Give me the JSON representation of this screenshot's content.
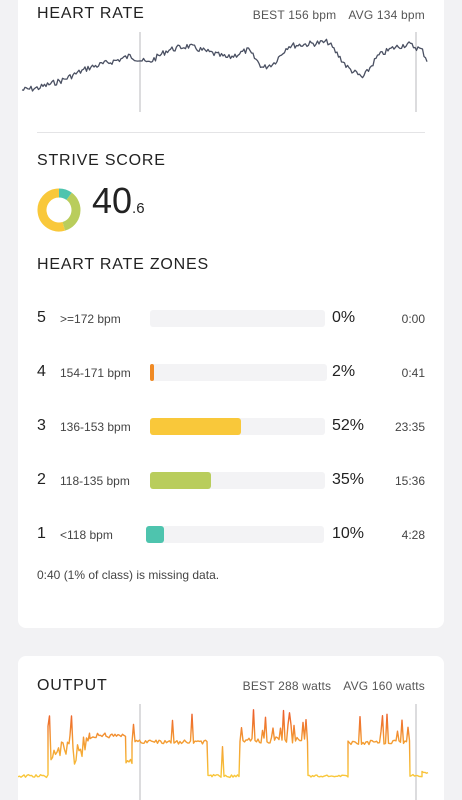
{
  "heart_rate": {
    "title": "HEART RATE",
    "best": "BEST 156 bpm",
    "avg": "AVG 134 bpm",
    "line_color": "#4a5062"
  },
  "strive": {
    "title": "STRIVE SCORE",
    "value_int": "40",
    "value_dec": ".6"
  },
  "zones": {
    "title": "HEART RATE ZONES",
    "rows": [
      {
        "zone": "5",
        "range": ">=172 bpm",
        "percent": "0%",
        "time": "0:00",
        "fraction": 0.0,
        "color": "#e0e0e0"
      },
      {
        "zone": "4",
        "range": "154-171 bpm",
        "percent": "2%",
        "time": "0:41",
        "fraction": 0.02,
        "color": "#f08a24"
      },
      {
        "zone": "3",
        "range": "136-153 bpm",
        "percent": "52%",
        "time": "23:35",
        "fraction": 0.52,
        "color": "#f9c83a"
      },
      {
        "zone": "2",
        "range": "118-135 bpm",
        "percent": "35%",
        "time": "15:36",
        "fraction": 0.35,
        "color": "#b9cd5c"
      },
      {
        "zone": "1",
        "range": "<118 bpm",
        "percent": "10%",
        "time": "4:28",
        "fraction": 0.1,
        "color": "#4ec4ae"
      }
    ],
    "missing_note": "0:40 (1% of class) is missing data."
  },
  "output": {
    "title": "OUTPUT",
    "best": "BEST 288 watts",
    "avg": "AVG 160 watts"
  }
}
